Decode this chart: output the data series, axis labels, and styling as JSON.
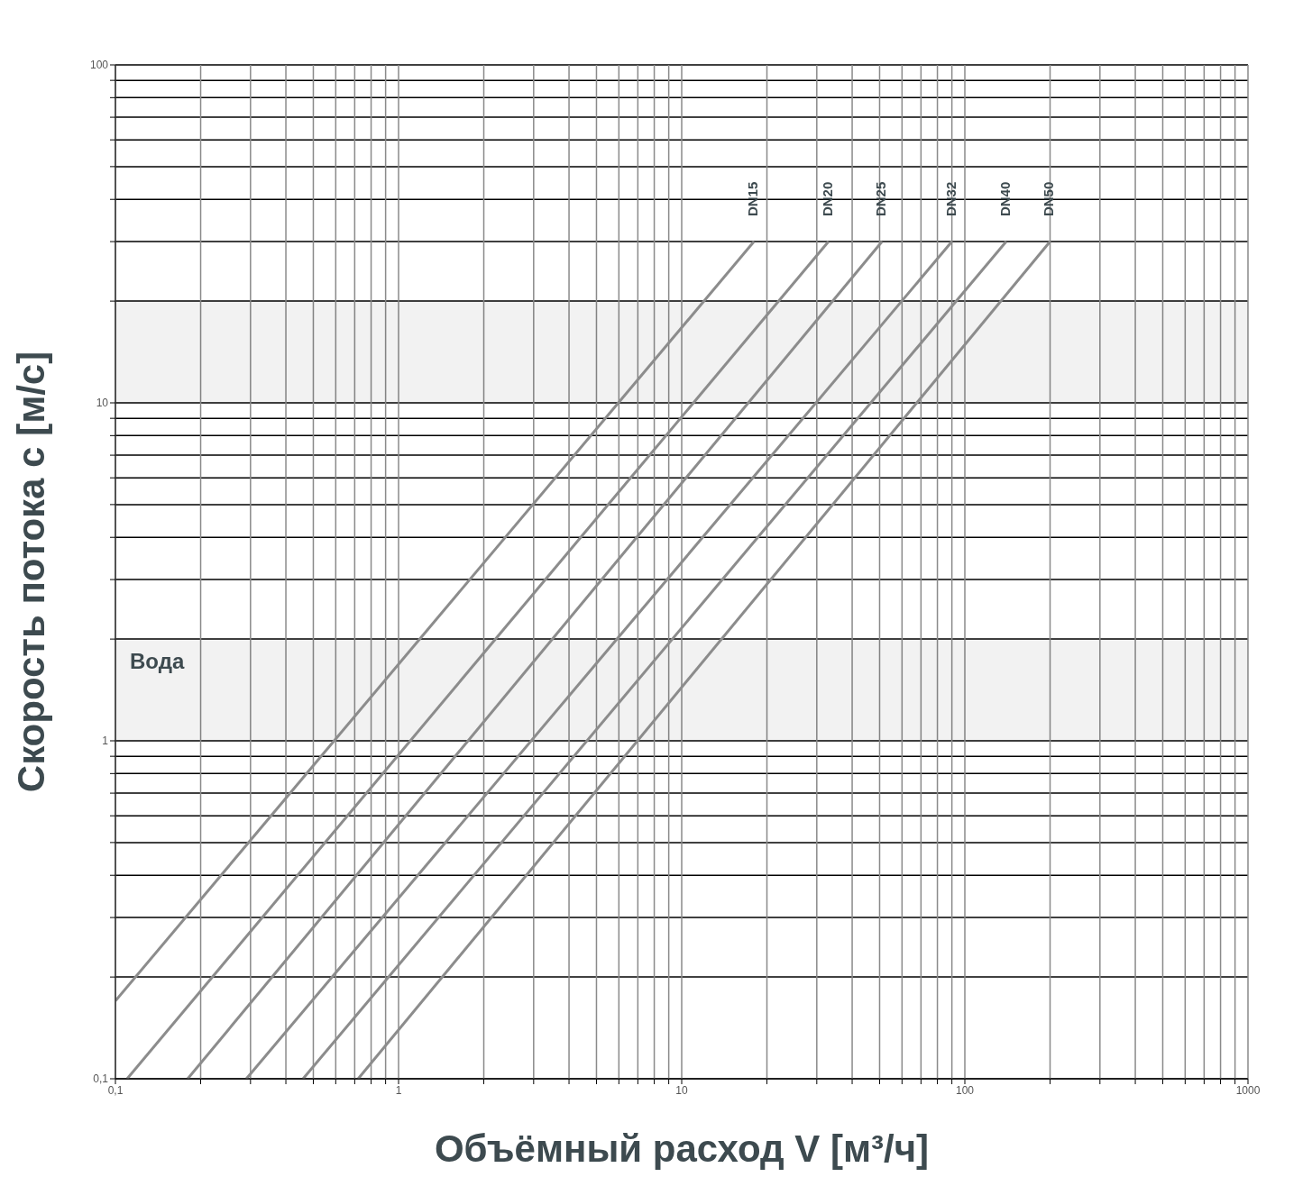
{
  "chart_data": {
    "type": "line",
    "xlabel": "Объёмный расход V [м³/ч]",
    "ylabel": "Скорость потока c [м/с]",
    "log": "xy",
    "grid": true,
    "marker": "none",
    "line_style": "solid",
    "xlim": [
      0.1,
      1000
    ],
    "ylim": [
      0.1,
      100
    ],
    "xticks": [
      {
        "value": 0.1,
        "label": "0,1"
      },
      {
        "value": 0.2,
        "label": null
      },
      {
        "value": 0.3,
        "label": null
      },
      {
        "value": 0.4,
        "label": null
      },
      {
        "value": 0.5,
        "label": null
      },
      {
        "value": 0.6,
        "label": null
      },
      {
        "value": 0.7,
        "label": null
      },
      {
        "value": 0.8,
        "label": null
      },
      {
        "value": 0.9,
        "label": null
      },
      1,
      {
        "value": 2,
        "label": null
      },
      {
        "value": 3,
        "label": null
      },
      {
        "value": 4,
        "label": null
      },
      {
        "value": 5,
        "label": null
      },
      {
        "value": 6,
        "label": null
      },
      {
        "value": 7,
        "label": null
      },
      {
        "value": 8,
        "label": null
      },
      {
        "value": 9,
        "label": null
      },
      10,
      {
        "value": 20,
        "label": null
      },
      {
        "value": 30,
        "label": null
      },
      {
        "value": 40,
        "label": null
      },
      {
        "value": 50,
        "label": null
      },
      {
        "value": 60,
        "label": null
      },
      {
        "value": 70,
        "label": null
      },
      {
        "value": 80,
        "label": null
      },
      {
        "value": 90,
        "label": null
      },
      100,
      {
        "value": 200,
        "label": null
      },
      {
        "value": 300,
        "label": null
      },
      {
        "value": 400,
        "label": null
      },
      {
        "value": 500,
        "label": null
      },
      {
        "value": 600,
        "label": null
      },
      {
        "value": 700,
        "label": null
      },
      {
        "value": 800,
        "label": null
      },
      {
        "value": 900,
        "label": null
      },
      1000
    ],
    "yticks": [
      {
        "value": 0.1,
        "label": "0,1"
      },
      {
        "value": 0.2,
        "label": null
      },
      {
        "value": 0.3,
        "label": null
      },
      {
        "value": 0.4,
        "label": null
      },
      {
        "value": 0.5,
        "label": null
      },
      {
        "value": 0.6,
        "label": null
      },
      {
        "value": 0.7,
        "label": null
      },
      {
        "value": 0.8,
        "label": null
      },
      {
        "value": 0.9,
        "label": null
      },
      1,
      {
        "value": 2,
        "label": null
      },
      {
        "value": 3,
        "label": null
      },
      {
        "value": 4,
        "label": null
      },
      {
        "value": 5,
        "label": null
      },
      {
        "value": 6,
        "label": null
      },
      {
        "value": 7,
        "label": null
      },
      {
        "value": 8,
        "label": null
      },
      {
        "value": 9,
        "label": null
      },
      10,
      {
        "value": 20,
        "label": null
      },
      {
        "value": 30,
        "label": null
      },
      {
        "value": 40,
        "label": null
      },
      {
        "value": 50,
        "label": null
      },
      {
        "value": 60,
        "label": null
      },
      {
        "value": 70,
        "label": null
      },
      {
        "value": 80,
        "label": null
      },
      {
        "value": 90,
        "label": null
      },
      100
    ],
    "bands": [
      {
        "axis": "y",
        "from": 1,
        "to": 2,
        "label": "Вода",
        "color": "#f2f2f2"
      },
      {
        "axis": "y",
        "from": 10,
        "to": 20,
        "label": null,
        "color": "#f2f2f2"
      }
    ],
    "series": [
      {
        "name": "DN15",
        "color": "#8c8c8c",
        "x": [
          0.1,
          18
        ],
        "values": [
          0.17,
          30
        ]
      },
      {
        "name": "DN20",
        "color": "#8c8c8c",
        "x": [
          0.11,
          33
        ],
        "values": [
          0.1,
          30
        ]
      },
      {
        "name": "DN25",
        "color": "#8c8c8c",
        "x": [
          0.18,
          51
        ],
        "values": [
          0.1,
          30
        ]
      },
      {
        "name": "DN32",
        "color": "#8c8c8c",
        "x": [
          0.29,
          90
        ],
        "values": [
          0.1,
          30
        ]
      },
      {
        "name": "DN40",
        "color": "#8c8c8c",
        "x": [
          0.46,
          140
        ],
        "values": [
          0.1,
          30
        ]
      },
      {
        "name": "DN50",
        "color": "#8c8c8c",
        "x": [
          0.72,
          200
        ],
        "values": [
          0.1,
          30
        ]
      }
    ]
  }
}
